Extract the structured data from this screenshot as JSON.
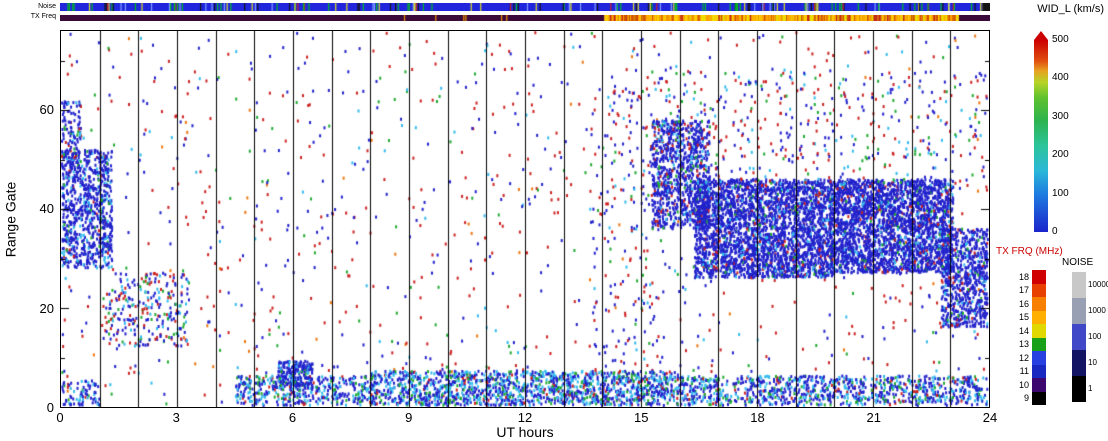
{
  "strips": {
    "noise": {
      "label": "Noise",
      "segments": [
        {
          "h0": 0,
          "h1": 23.8,
          "color": "#2126dd"
        },
        {
          "h0": 23.8,
          "h1": 24,
          "color": "#141414"
        }
      ],
      "flecks": {
        "count": 170,
        "colors": [
          "#00bb22",
          "#dddd22",
          "#cc2222",
          "#141414",
          "#7f9fff"
        ],
        "weights": [
          0.45,
          0.12,
          0.12,
          0.19,
          0.12
        ]
      }
    },
    "txfreq": {
      "label": "TX Freq",
      "segments": [
        {
          "h0": 0,
          "h1": 14.05,
          "color": "#3a0a3a"
        },
        {
          "h0": 14.05,
          "h1": 23.2,
          "color": "#f09000",
          "mottle": {
            "count": 520,
            "colors": [
              "#ffd000",
              "#ffaa00",
              "#d05000",
              "#c02020",
              "#e8e800"
            ],
            "weights": [
              0.3,
              0.25,
              0.2,
              0.1,
              0.15
            ]
          }
        },
        {
          "h0": 23.2,
          "h1": 24,
          "color": "#3a0a3a"
        }
      ],
      "flecks": {
        "count": 6,
        "h0": 8.8,
        "h1": 11.6,
        "colors": [
          "#f09000"
        ],
        "weights": [
          1
        ]
      }
    }
  },
  "colorbars": {
    "wid": {
      "title": "WID_L (km/s)",
      "ticks": [
        "500",
        "400",
        "300",
        "200",
        "100",
        "0"
      ],
      "gradient": [
        {
          "p": 0,
          "c": "#1b24cc"
        },
        {
          "p": 0.2,
          "c": "#1e7de0"
        },
        {
          "p": 0.32,
          "c": "#2ab8d8"
        },
        {
          "p": 0.45,
          "c": "#2cc49a"
        },
        {
          "p": 0.58,
          "c": "#2db34e"
        },
        {
          "p": 0.7,
          "c": "#5fc22e"
        },
        {
          "p": 0.78,
          "c": "#b8d428"
        },
        {
          "p": 0.84,
          "c": "#e8a020"
        },
        {
          "p": 0.89,
          "c": "#e05010"
        },
        {
          "p": 1,
          "c": "#cc0000"
        }
      ]
    },
    "txfrq": {
      "title": "TX FRQ (MHz)",
      "title_color": "#cc0000",
      "labels": [
        "18",
        "17",
        "16",
        "15",
        "14",
        "13",
        "12",
        "11",
        "10",
        "9"
      ],
      "colors": [
        "#d00000",
        "#e84000",
        "#f88000",
        "#ffb000",
        "#e0d800",
        "#18a018",
        "#2840e0",
        "#1828c0",
        "#3c0870",
        "#000000"
      ]
    },
    "noise": {
      "title": "NOISE",
      "labels": [
        "10000",
        "1000",
        "100",
        "10",
        "1"
      ],
      "colors": [
        "#c8c8c8",
        "#9aa0b4",
        "#4048c8",
        "#141464",
        "#000000"
      ]
    }
  },
  "chart_data": {
    "type": "scatter",
    "xlabel": "UT hours",
    "ylabel": "Range Gate",
    "xlim": [
      0,
      24
    ],
    "ylim": [
      0,
      76
    ],
    "xticks": [
      "0",
      "3",
      "6",
      "9",
      "12",
      "15",
      "18",
      "21",
      "24"
    ],
    "yticks": [
      "0",
      "20",
      "40",
      "60"
    ],
    "hour_gridlines": true,
    "point_size": [
      2,
      3
    ],
    "palette": {
      "blue": "#2222cc",
      "cyan": "#33bbee",
      "green": "#22aa33",
      "red": "#cc2222",
      "orange": "#ee7711"
    },
    "regions": [
      {
        "name": "background-speckle",
        "h0": 0,
        "h1": 24,
        "g0": 0,
        "g1": 76,
        "count": 1150,
        "weights": {
          "red": 0.4,
          "blue": 0.36,
          "cyan": 0.09,
          "green": 0.1,
          "orange": 0.05
        }
      },
      {
        "name": "bottom-band-early",
        "h0": 4.5,
        "h1": 8,
        "g0": 0,
        "g1": 6,
        "count": 420,
        "weights": {
          "blue": 0.52,
          "cyan": 0.3,
          "green": 0.13,
          "red": 0.05
        }
      },
      {
        "name": "bottom-band-mid",
        "h0": 8,
        "h1": 16,
        "g0": 0,
        "g1": 7,
        "count": 1500,
        "weights": {
          "blue": 0.5,
          "cyan": 0.32,
          "green": 0.13,
          "red": 0.05
        }
      },
      {
        "name": "bottom-band-late",
        "h0": 16,
        "h1": 24,
        "g0": 0,
        "g1": 6,
        "count": 1000,
        "weights": {
          "blue": 0.55,
          "cyan": 0.28,
          "green": 0.12,
          "red": 0.05
        }
      },
      {
        "name": "bottom-blob-06ut",
        "h0": 5.6,
        "h1": 6.5,
        "g0": 4,
        "g1": 9,
        "count": 200,
        "weights": {
          "blue": 0.8,
          "cyan": 0.15,
          "green": 0.05
        }
      },
      {
        "name": "bottom-band-start",
        "h0": 0,
        "h1": 1,
        "g0": 0,
        "g1": 5,
        "count": 80,
        "weights": {
          "blue": 0.6,
          "cyan": 0.25,
          "green": 0.1,
          "red": 0.05
        }
      },
      {
        "name": "left-blob",
        "h0": 0,
        "h1": 1.3,
        "g0": 28,
        "g1": 52,
        "count": 800,
        "weights": {
          "blue": 0.8,
          "cyan": 0.13,
          "green": 0.04,
          "red": 0.03
        }
      },
      {
        "name": "left-blob-top",
        "h0": 0,
        "h1": 0.5,
        "g0": 48,
        "g1": 62,
        "count": 120,
        "weights": {
          "blue": 0.7,
          "cyan": 0.15,
          "green": 0.05,
          "red": 0.1
        }
      },
      {
        "name": "left-diagonal",
        "h0": 1.2,
        "h1": 3.3,
        "g0": 12,
        "g1": 27,
        "count": 250,
        "weights": {
          "blue": 0.45,
          "red": 0.25,
          "green": 0.15,
          "cyan": 0.15
        }
      },
      {
        "name": "evening-band-onset",
        "h0": 15.3,
        "h1": 16.8,
        "g0": 36,
        "g1": 58,
        "count": 900,
        "weights": {
          "blue": 0.84,
          "cyan": 0.07,
          "green": 0.04,
          "red": 0.05
        }
      },
      {
        "name": "evening-band-1",
        "h0": 16.4,
        "h1": 20,
        "g0": 26,
        "g1": 46,
        "count": 2900,
        "weights": {
          "blue": 0.87,
          "cyan": 0.06,
          "green": 0.03,
          "red": 0.04
        }
      },
      {
        "name": "evening-band-2",
        "h0": 19.9,
        "h1": 23.1,
        "g0": 27,
        "g1": 46,
        "count": 2600,
        "weights": {
          "blue": 0.87,
          "cyan": 0.06,
          "green": 0.03,
          "red": 0.04
        }
      },
      {
        "name": "evening-band-end",
        "h0": 22.8,
        "h1": 24,
        "g0": 16,
        "g1": 36,
        "count": 700,
        "weights": {
          "blue": 0.85,
          "cyan": 0.08,
          "green": 0.03,
          "red": 0.04
        }
      },
      {
        "name": "evening-top-scatter",
        "h0": 15.4,
        "h1": 24,
        "g0": 44,
        "g1": 68,
        "count": 360,
        "weights": {
          "red": 0.3,
          "blue": 0.4,
          "green": 0.15,
          "cyan": 0.15
        }
      },
      {
        "name": "pre-band-scatter",
        "h0": 13.7,
        "h1": 15.6,
        "g0": 2,
        "g1": 66,
        "count": 200,
        "weights": {
          "blue": 0.5,
          "red": 0.3,
          "green": 0.1,
          "cyan": 0.1
        }
      }
    ]
  }
}
